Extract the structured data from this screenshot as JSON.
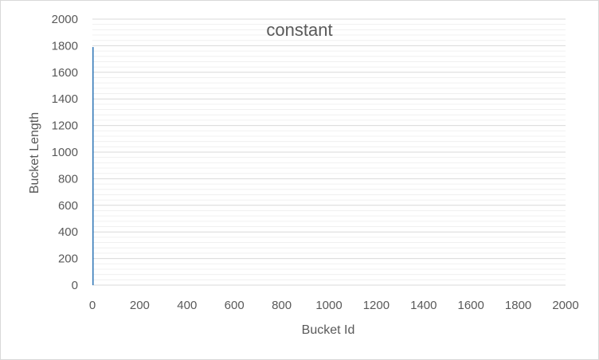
{
  "chart_data": {
    "type": "bar",
    "title": "constant",
    "xlabel": "Bucket Id",
    "ylabel": "Bucket Length",
    "xlim": [
      0,
      2000
    ],
    "ylim": [
      0,
      2000
    ],
    "x_ticks": [
      "0",
      "200",
      "400",
      "600",
      "800",
      "1000",
      "1200",
      "1400",
      "1600",
      "1800",
      "2000"
    ],
    "y_ticks": [
      "0",
      "200",
      "400",
      "600",
      "800",
      "1000",
      "1200",
      "1400",
      "1600",
      "1800",
      "2000"
    ],
    "x_tick_values": [
      0,
      200,
      400,
      600,
      800,
      1000,
      1200,
      1400,
      1600,
      1800,
      2000
    ],
    "y_tick_values": [
      0,
      200,
      400,
      600,
      800,
      1000,
      1200,
      1400,
      1600,
      1800,
      2000
    ],
    "minor_gridlines": true,
    "major_gridlines": true,
    "legend": "none",
    "series": [
      {
        "x": [
          0
        ],
        "values": [
          1790
        ]
      }
    ],
    "colors": {
      "bar": "#2e75b6",
      "major_grid": "#d9d9d9",
      "minor_grid": "#f0f0f0",
      "text": "#595959"
    }
  }
}
